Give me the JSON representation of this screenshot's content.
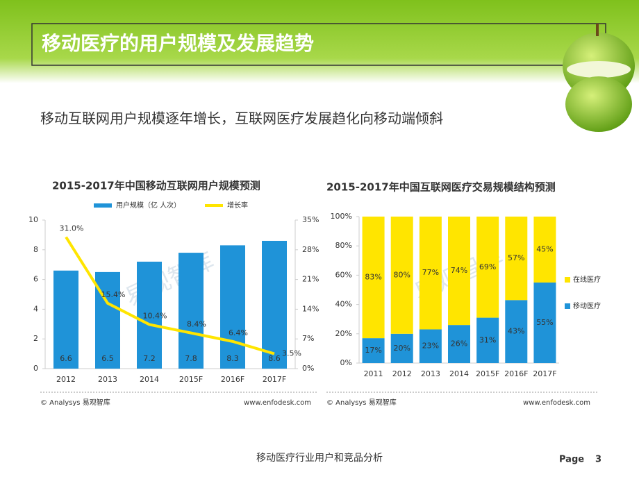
{
  "slide": {
    "title": "移动医疗的用户规模及发展趋势",
    "subtitle": "移动互联网用户规模逐年增长，互联网医疗发展趋化向移动端倾斜",
    "footer": "移动医疗行业用户和竞品分析",
    "page_label": "Page",
    "page_number": 3
  },
  "chart_data": [
    {
      "type": "combo",
      "title": "2015-2017年中国移动互联网用户规模预测",
      "categories": [
        "2012",
        "2013",
        "2014",
        "2015F",
        "2016F",
        "2017F"
      ],
      "series": [
        {
          "name": "用户规模（亿 人次）",
          "type": "bar",
          "color": "#1f93d8",
          "values": [
            6.6,
            6.5,
            7.2,
            7.8,
            8.3,
            8.6
          ]
        },
        {
          "name": "增长率",
          "type": "line",
          "axis": "y2",
          "color": "#ffe500",
          "values": [
            31.0,
            15.4,
            10.4,
            8.4,
            6.4,
            3.5
          ],
          "value_labels": [
            "31.0%",
            "15.4%",
            "10.4%",
            "8.4%",
            "6.4%",
            "3.5%"
          ]
        }
      ],
      "ylim": [
        0,
        10
      ],
      "yticks": [
        0,
        2,
        4,
        6,
        8,
        10
      ],
      "y2lim": [
        0,
        35
      ],
      "y2ticks": [
        {
          "value": 0,
          "label": "0%"
        },
        {
          "value": 7,
          "label": "7%"
        },
        {
          "value": 14,
          "label": "14%"
        },
        {
          "value": 21,
          "label": "21%"
        },
        {
          "value": 28,
          "label": "28%"
        },
        {
          "value": 35,
          "label": "35%"
        }
      ],
      "watermark": "易观智库",
      "source": "© Analysys 易观智库",
      "website": "www.enfodesk.com"
    },
    {
      "type": "stacked_bar",
      "title": "2015-2017年中国互联网医疗交易规模结构预测",
      "categories": [
        "2011",
        "2012",
        "2013",
        "2014",
        "2015F",
        "2016F",
        "2017F"
      ],
      "series": [
        {
          "name": "移动医疗",
          "color": "#1f93d8",
          "values": [
            17,
            20,
            23,
            26,
            31,
            43,
            55
          ],
          "value_labels": [
            "17%",
            "20%",
            "23%",
            "26%",
            "31%",
            "43%",
            "55%"
          ]
        },
        {
          "name": "在线医疗",
          "color": "#ffe500",
          "values": [
            83,
            80,
            77,
            74,
            69,
            57,
            45
          ],
          "value_labels": [
            "83%",
            "80%",
            "77%",
            "74%",
            "69%",
            "57%",
            "45%"
          ]
        }
      ],
      "ylim": [
        0,
        100
      ],
      "yticks": [
        {
          "value": 0,
          "label": "0%"
        },
        {
          "value": 20,
          "label": "20%"
        },
        {
          "value": 40,
          "label": "40%"
        },
        {
          "value": 60,
          "label": "60%"
        },
        {
          "value": 80,
          "label": "80%"
        },
        {
          "value": 100,
          "label": "100%"
        }
      ],
      "watermark": "易观智库",
      "source": "© Analysys 易观智库",
      "website": "www.enfodesk.com"
    }
  ]
}
